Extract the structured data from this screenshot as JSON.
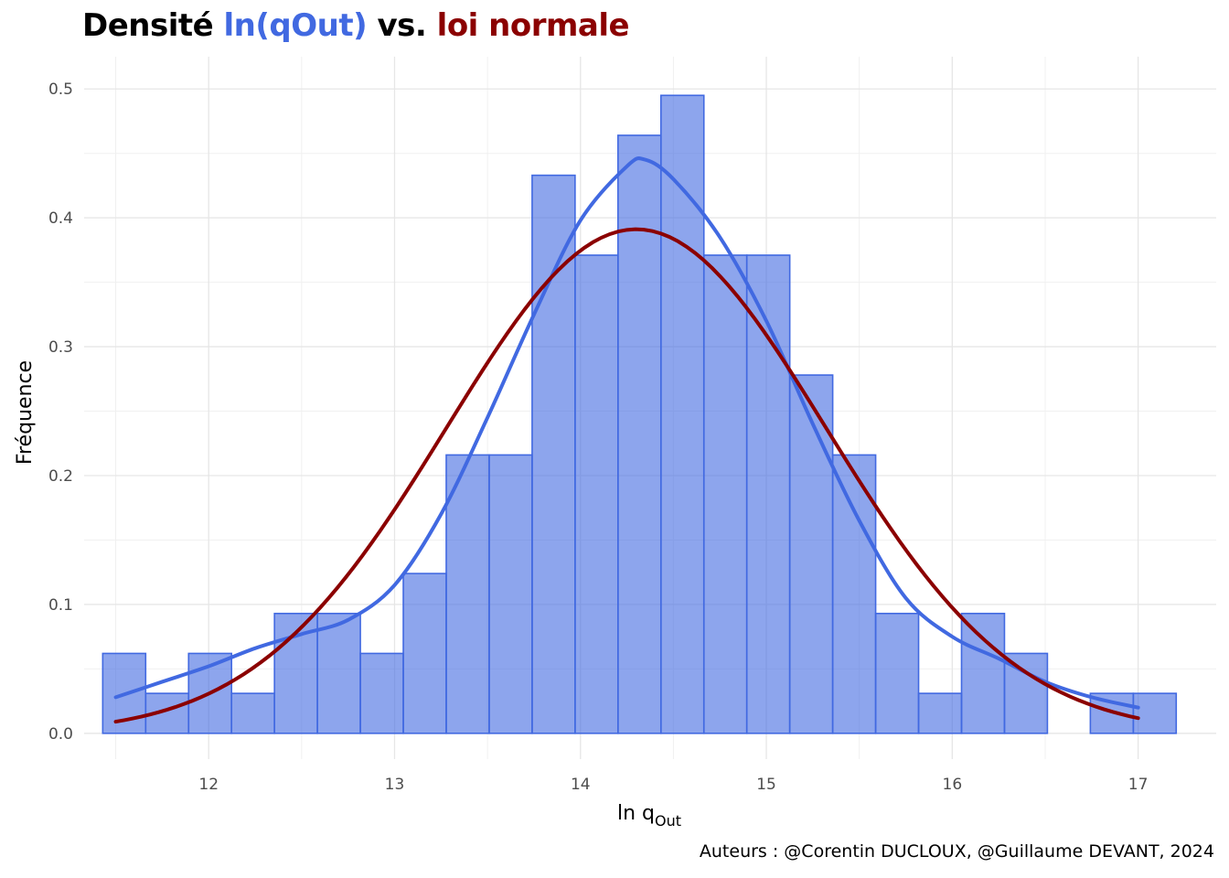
{
  "title": {
    "part1": "Densité ",
    "part2": "ln(qOut)",
    "part3": " vs. ",
    "part4": "loi normale",
    "color_blue": "#4169E1",
    "color_red": "#8B0000"
  },
  "caption": "Auteurs : @Corentin DUCLOUX, @Guillaume DEVANT, 2024",
  "chart_data": {
    "type": "bar",
    "xlabel_main": "ln q",
    "xlabel_sub": "Out",
    "ylabel": "Fréquence",
    "xlim": [
      11.33,
      17.42
    ],
    "ylim": [
      -0.02,
      0.525
    ],
    "x_ticks": [
      12,
      13,
      14,
      15,
      16,
      17
    ],
    "y_ticks": [
      0.0,
      0.1,
      0.2,
      0.3,
      0.4,
      0.5
    ],
    "y_tick_labels": [
      "0.0",
      "0.1",
      "0.2",
      "0.3",
      "0.4",
      "0.5"
    ],
    "grid": true,
    "histogram": {
      "bin_start": 11.43,
      "bin_width": 0.231,
      "values": [
        0.062,
        0.031,
        0.062,
        0.031,
        0.093,
        0.093,
        0.062,
        0.124,
        0.216,
        0.216,
        0.433,
        0.371,
        0.464,
        0.495,
        0.371,
        0.371,
        0.278,
        0.216,
        0.093,
        0.031,
        0.093,
        0.062,
        0.0,
        0.031,
        0.031
      ],
      "fill": "#4169E1",
      "border": "#4169E1"
    },
    "series": [
      {
        "kind": "kde",
        "color": "#4169E1",
        "x": [
          11.5,
          11.75,
          12.0,
          12.25,
          12.5,
          12.75,
          13.0,
          13.25,
          13.5,
          13.75,
          14.0,
          14.25,
          14.35,
          14.5,
          14.75,
          15.0,
          15.25,
          15.5,
          15.75,
          16.0,
          16.25,
          16.5,
          16.75,
          17.0
        ],
        "y": [
          0.028,
          0.04,
          0.052,
          0.066,
          0.077,
          0.088,
          0.115,
          0.17,
          0.245,
          0.325,
          0.398,
          0.44,
          0.445,
          0.43,
          0.385,
          0.32,
          0.24,
          0.165,
          0.105,
          0.075,
          0.058,
          0.04,
          0.028,
          0.02
        ]
      },
      {
        "kind": "normal",
        "color": "#8B0000",
        "mean": 14.3,
        "sd": 1.02,
        "x_range": [
          11.5,
          17.0
        ]
      }
    ]
  }
}
